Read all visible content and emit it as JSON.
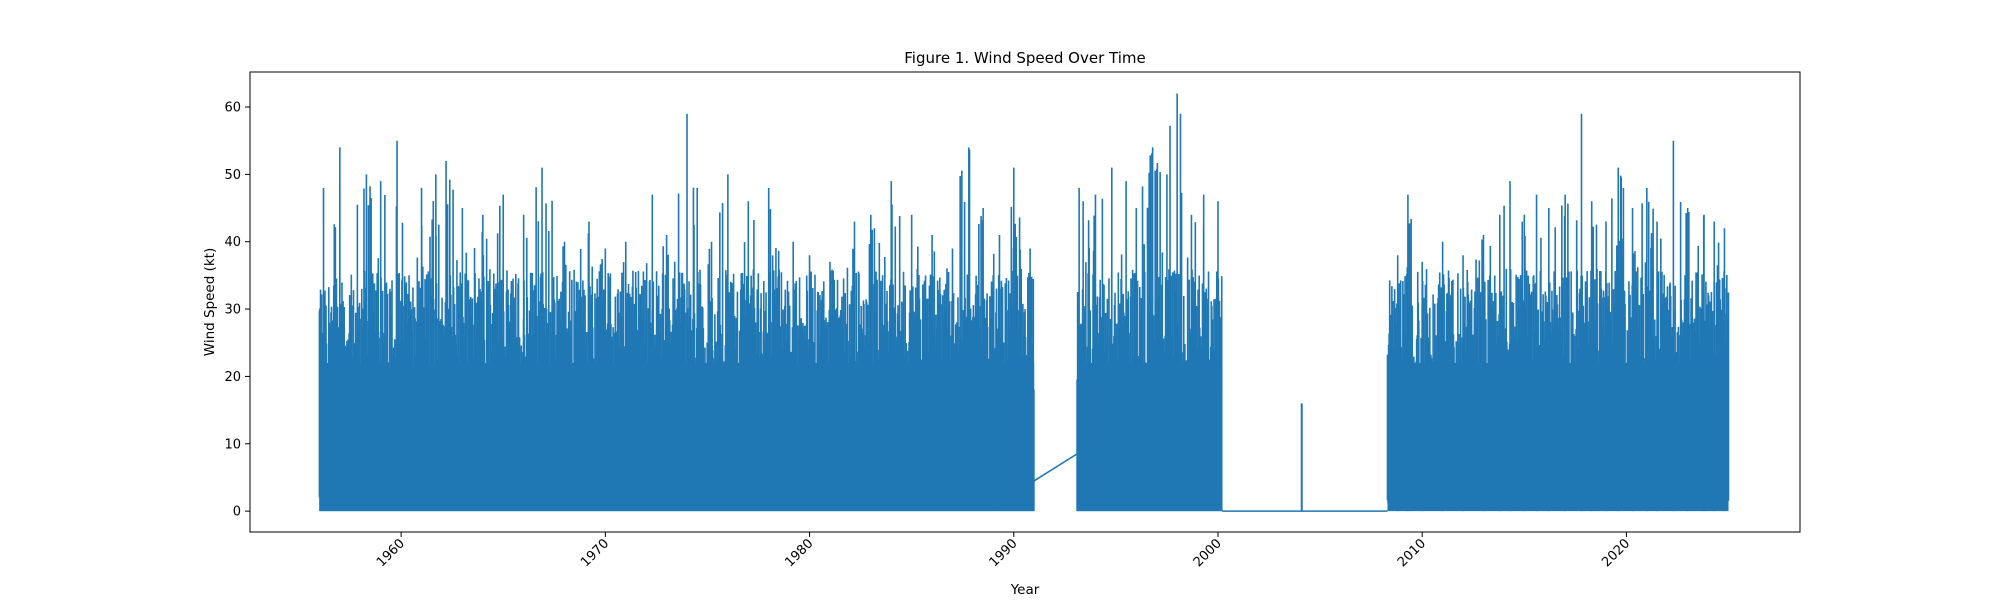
{
  "chart_data": {
    "type": "line",
    "title": "Figure 1. Wind Speed Over Time",
    "xlabel": "Year",
    "ylabel": "Wind Speed (kt)",
    "xlim": [
      1952.6,
      2028.5
    ],
    "ylim": [
      -3.1,
      65.2
    ],
    "xticks": [
      1960,
      1970,
      1980,
      1990,
      2000,
      2010,
      2020
    ],
    "yticks": [
      0,
      10,
      20,
      30,
      40,
      50,
      60
    ],
    "grid": false,
    "legend": "none",
    "series_color": "#1f77b4",
    "series": [
      {
        "segments": [
          {
            "x_start": 1956.0,
            "x_end": 1991.0,
            "y_min": 0,
            "y_max": 59,
            "peaks": [
              [
                1956.2,
                48
              ],
              [
                1957.0,
                54
              ],
              [
                1958.3,
                50
              ],
              [
                1959.0,
                49
              ],
              [
                1959.8,
                55
              ],
              [
                1961.0,
                48
              ],
              [
                1961.7,
                50
              ],
              [
                1962.2,
                52
              ],
              [
                1963.0,
                45
              ],
              [
                1964.0,
                44
              ],
              [
                1965.0,
                47
              ],
              [
                1966.0,
                44
              ],
              [
                1966.9,
                51
              ],
              [
                1968.0,
                40
              ],
              [
                1969.2,
                43
              ],
              [
                1970.0,
                39
              ],
              [
                1971.0,
                40
              ],
              [
                1972.3,
                47
              ],
              [
                1973.0,
                41
              ],
              [
                1974.0,
                59
              ],
              [
                1974.5,
                48
              ],
              [
                1975.2,
                40
              ],
              [
                1976.0,
                50
              ],
              [
                1977.0,
                46
              ],
              [
                1978.0,
                48
              ],
              [
                1979.2,
                40
              ],
              [
                1980.0,
                38
              ],
              [
                1981.0,
                37
              ],
              [
                1982.2,
                43
              ],
              [
                1983.0,
                44
              ],
              [
                1984.0,
                49
              ],
              [
                1985.0,
                44
              ],
              [
                1986.0,
                41
              ],
              [
                1987.0,
                39
              ],
              [
                1987.8,
                54
              ],
              [
                1988.5,
                45
              ],
              [
                1989.3,
                41
              ],
              [
                1990.0,
                51
              ],
              [
                1990.8,
                39
              ]
            ]
          },
          {
            "x_start": 1991.0,
            "x_end": 1993.1,
            "y_start": 4.5,
            "y_end": 8.5
          },
          {
            "x_start": 1993.1,
            "x_end": 2000.2,
            "y_min": 0,
            "y_max": 62,
            "peaks": [
              [
                1993.2,
                48
              ],
              [
                1994.0,
                47
              ],
              [
                1994.8,
                51
              ],
              [
                1995.5,
                49
              ],
              [
                1996.0,
                45
              ],
              [
                1996.8,
                54
              ],
              [
                1997.5,
                50
              ],
              [
                1998.0,
                62
              ],
              [
                1998.7,
                44
              ],
              [
                1999.3,
                47
              ],
              [
                2000.0,
                46
              ]
            ]
          },
          {
            "x_start": 2000.2,
            "x_end": 2008.3,
            "y_value": 0
          },
          {
            "x_start": 2004.1,
            "x_end": 2004.1,
            "y_spike": 16
          },
          {
            "x_start": 2008.3,
            "x_end": 2025.0,
            "y_min": 0,
            "y_max": 59,
            "peaks": [
              [
                2008.8,
                38
              ],
              [
                2009.3,
                47
              ],
              [
                2010.0,
                37
              ],
              [
                2011.0,
                40
              ],
              [
                2012.0,
                38
              ],
              [
                2013.0,
                41
              ],
              [
                2013.8,
                44
              ],
              [
                2014.3,
                49
              ],
              [
                2015.0,
                44
              ],
              [
                2015.6,
                47
              ],
              [
                2016.2,
                45
              ],
              [
                2017.0,
                47
              ],
              [
                2017.8,
                59
              ],
              [
                2018.3,
                46
              ],
              [
                2019.0,
                43
              ],
              [
                2019.6,
                51
              ],
              [
                2020.3,
                45
              ],
              [
                2021.0,
                48
              ],
              [
                2021.5,
                43
              ],
              [
                2022.3,
                55
              ],
              [
                2023.0,
                45
              ],
              [
                2023.8,
                44
              ],
              [
                2024.3,
                43
              ],
              [
                2024.8,
                42
              ]
            ]
          }
        ]
      }
    ]
  }
}
